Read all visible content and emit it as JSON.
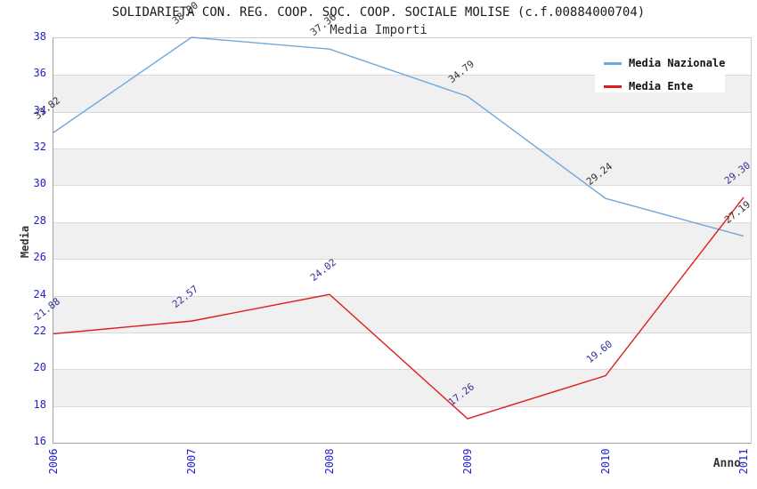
{
  "title": "SOLIDARIETA CON. REG. COOP. SOC. COOP. SOCIALE MOLISE (c.f.00884000704)",
  "subtitle": "Media Importi",
  "legend": {
    "items": [
      {
        "label": "Media Nazionale",
        "color": "#6fa8dc"
      },
      {
        "label": "Media Ente",
        "color": "#dd1e1e"
      }
    ]
  },
  "axes": {
    "y_title": "Media",
    "x_title": "Anno"
  },
  "chart_data": {
    "type": "line",
    "categories": [
      "2006",
      "2007",
      "2008",
      "2009",
      "2010",
      "2011"
    ],
    "series": [
      {
        "name": "Media Nazionale",
        "color": "#6fa8dc",
        "label_color": "#333333",
        "values": [
          32.82,
          38.0,
          37.36,
          34.79,
          29.24,
          27.19
        ]
      },
      {
        "name": "Media Ente",
        "color": "#dd1e1e",
        "label_color": "#333399",
        "values": [
          21.88,
          22.57,
          24.02,
          17.26,
          19.6,
          29.3
        ]
      }
    ],
    "title": "Media Importi",
    "xlabel": "Anno",
    "ylabel": "Media",
    "ylim": [
      16,
      38
    ],
    "ytick_step": 2,
    "grid": "horizontal-bands",
    "legend_position": "top-right",
    "band_colors": [
      "#ffffff",
      "#f0f0f0"
    ],
    "gridline_color": "#d9d9d9",
    "tick_color": "#2222cc"
  }
}
